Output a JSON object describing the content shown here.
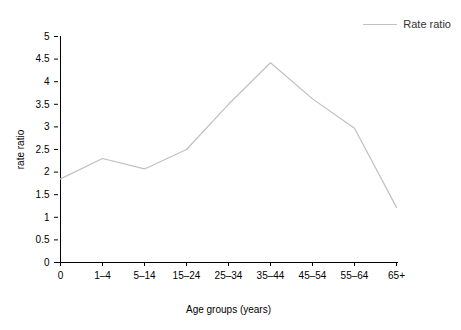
{
  "chart_data": {
    "type": "line",
    "x_label": "Age groups (years)",
    "y_label": "rate ratio",
    "categories": [
      "0",
      "1–4",
      "5–14",
      "15–24",
      "25–34",
      "35–44",
      "45–54",
      "55–64",
      "65+"
    ],
    "series": [
      {
        "name": "Rate ratio",
        "color": "#c0c0c0",
        "values": [
          1.85,
          2.3,
          2.07,
          2.5,
          3.5,
          4.42,
          3.62,
          2.97,
          1.22
        ]
      }
    ],
    "ylim": [
      0,
      5
    ],
    "yticks": [
      0,
      0.5,
      1,
      1.5,
      2,
      2.5,
      3,
      3.5,
      4,
      4.5,
      5
    ],
    "grid": false,
    "legend": "top-right"
  }
}
